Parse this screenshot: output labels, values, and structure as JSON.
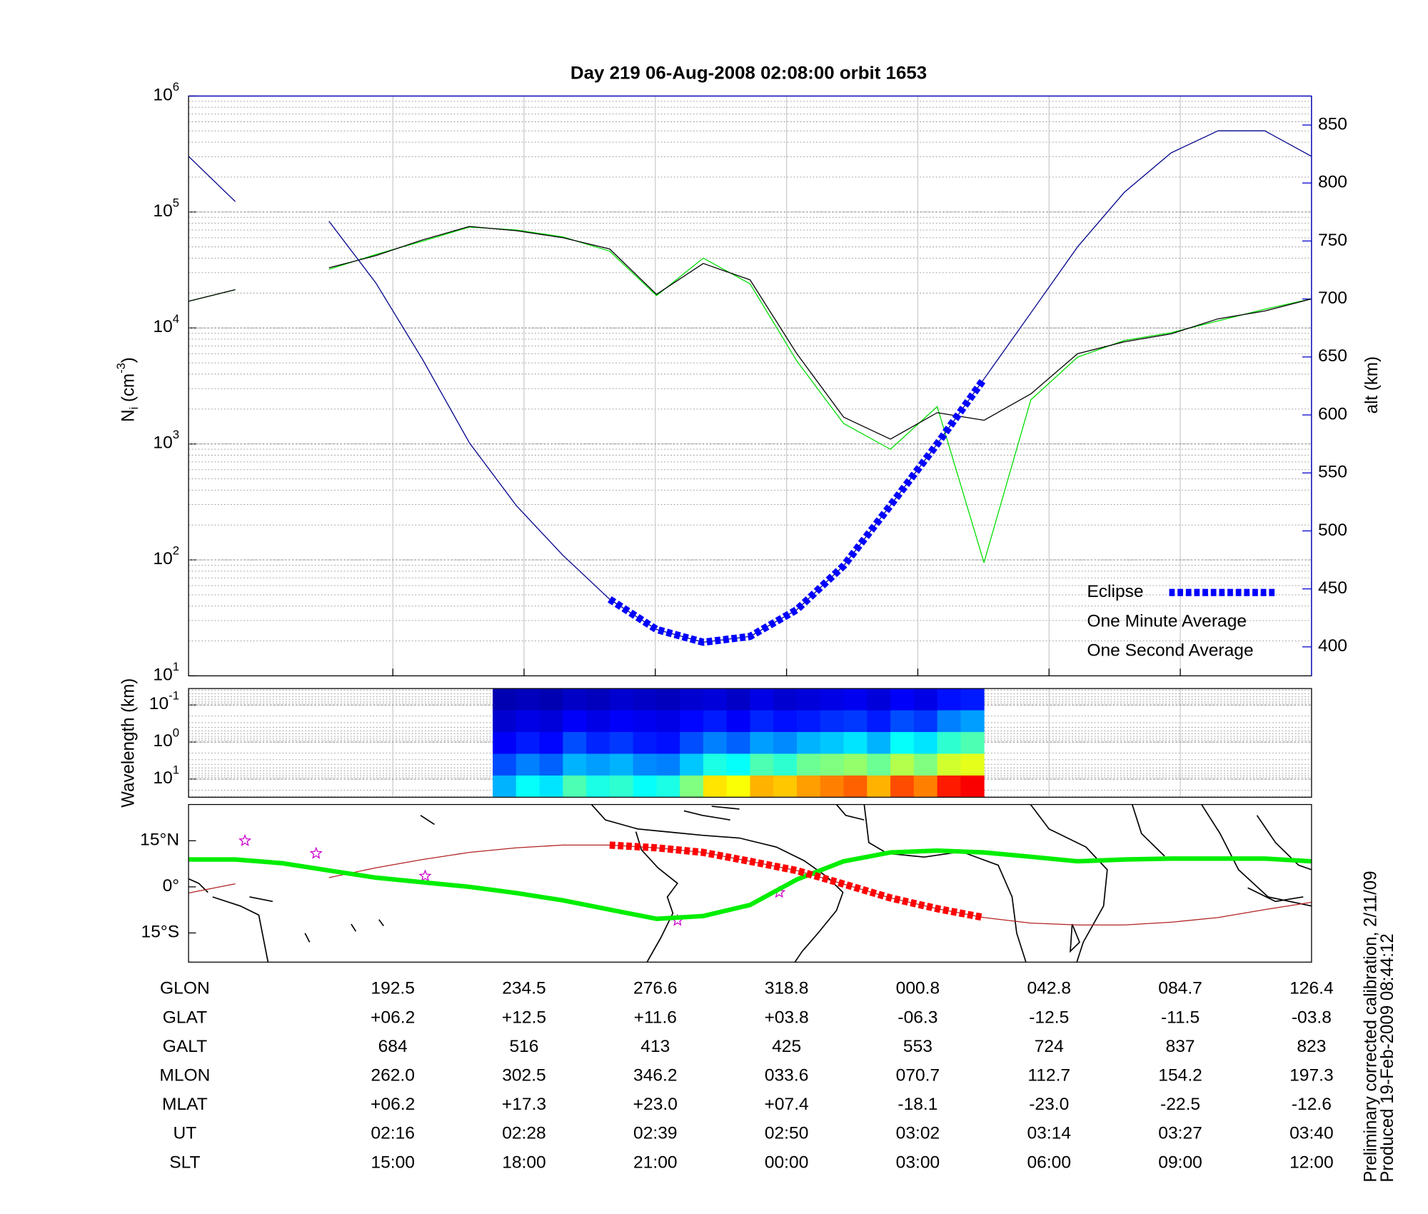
{
  "title": "Day 219  06-Aug-2008 02:08:00   orbit 1653",
  "chart_data": [
    {
      "type": "line",
      "ylabel": [
        "N",
        "i",
        " (cm",
        "-3",
        ")"
      ],
      "log_scale": true,
      "ylim": [
        10,
        1000000
      ],
      "yticks": [
        {
          "value": 10,
          "label": "10",
          "exponent": "1"
        },
        {
          "value": 100,
          "label": "10",
          "exponent": "2"
        },
        {
          "value": 1000,
          "label": "10",
          "exponent": "3"
        },
        {
          "value": 10000,
          "label": "10",
          "exponent": "4"
        },
        {
          "value": 100000,
          "label": "10",
          "exponent": "5"
        },
        {
          "value": 1000000,
          "label": "10",
          "exponent": "6"
        }
      ],
      "y2label": "alt (km)",
      "y2lim": [
        375,
        875
      ],
      "y2ticks": [
        400,
        450,
        500,
        550,
        600,
        650,
        700,
        750,
        800,
        850
      ],
      "y2color": "#0000cc",
      "grid": true,
      "legend": "lower right",
      "series": [
        {
          "color": "#00008b",
          "axis": "y2",
          "values": [
            823,
            784,
            null,
            767,
            714,
            648,
            576,
            522,
            479,
            441,
            415,
            404,
            409,
            432,
            470,
            522,
            575,
            631,
            688,
            745,
            792,
            826,
            845,
            845,
            823
          ]
        },
        {
          "name": "Eclipse",
          "color": "#0000ff",
          "axis": "y2",
          "style": "dashed",
          "values": [
            null,
            null,
            null,
            null,
            null,
            null,
            null,
            null,
            null,
            441,
            415,
            404,
            409,
            432,
            470,
            522,
            575,
            631,
            null,
            null,
            null,
            null,
            null,
            null,
            null
          ]
        },
        {
          "name": "One Minute Average",
          "color": "#000000",
          "values": [
            17000,
            21400,
            null,
            33000,
            42000,
            57500,
            75000,
            69000,
            60000,
            48000,
            19500,
            36000,
            26000,
            6000,
            1700,
            1100,
            1860,
            1600,
            2700,
            6000,
            7600,
            8900,
            12000,
            14000,
            17800
          ]
        },
        {
          "name": "One Second Average",
          "color": "#00dd00",
          "values": [
            17000,
            21400,
            null,
            32000,
            43000,
            56000,
            74000,
            70000,
            61000,
            46000,
            19000,
            40000,
            24000,
            5200,
            1500,
            900,
            2100,
            95,
            2400,
            5600,
            7800,
            9100,
            11500,
            14500,
            17800
          ]
        }
      ]
    },
    {
      "type": "heatmap",
      "ylabel": "Wavelength (km)",
      "log_scale": true,
      "y_inverted": true,
      "ylim": [
        0.036,
        31
      ],
      "yticks": [
        {
          "value": 0.1,
          "label": "10",
          "exponent": "-1"
        },
        {
          "value": 1,
          "label": "10",
          "exponent": "0"
        },
        {
          "value": 10,
          "label": "10",
          "exponent": "1"
        }
      ],
      "grid": true,
      "colormap": "jet",
      "values": [
        [
          null,
          null,
          null,
          null,
          null,
          null,
          null,
          null,
          null,
          null,
          null,
          null,
          null,
          0.05,
          0.06,
          0.05,
          0.07,
          0.06,
          0.08,
          0.07,
          0.06,
          0.08,
          0.09,
          0.07,
          0.1,
          0.08,
          0.09,
          0.1,
          0.11,
          0.09,
          0.12,
          0.1,
          0.14,
          0.15,
          null,
          null,
          null,
          null,
          null,
          null,
          null,
          null,
          null,
          null,
          null,
          null,
          null,
          null
        ],
        [
          null,
          null,
          null,
          null,
          null,
          null,
          null,
          null,
          null,
          null,
          null,
          null,
          null,
          0.08,
          0.1,
          0.09,
          0.12,
          0.1,
          0.12,
          0.11,
          0.1,
          0.13,
          0.15,
          0.12,
          0.16,
          0.14,
          0.15,
          0.17,
          0.18,
          0.15,
          0.2,
          0.18,
          0.25,
          0.28,
          null,
          null,
          null,
          null,
          null,
          null,
          null,
          null,
          null,
          null,
          null,
          null,
          null,
          null
        ],
        [
          null,
          null,
          null,
          null,
          null,
          null,
          null,
          null,
          null,
          null,
          null,
          null,
          null,
          0.12,
          0.15,
          0.13,
          0.2,
          0.16,
          0.18,
          0.15,
          0.14,
          0.2,
          0.25,
          0.22,
          0.28,
          0.26,
          0.3,
          0.32,
          0.35,
          0.3,
          0.38,
          0.35,
          0.42,
          0.45,
          null,
          null,
          null,
          null,
          null,
          null,
          null,
          null,
          null,
          null,
          null,
          null,
          null,
          null
        ],
        [
          null,
          null,
          null,
          null,
          null,
          null,
          null,
          null,
          null,
          null,
          null,
          null,
          null,
          0.2,
          0.25,
          0.22,
          0.3,
          0.28,
          0.3,
          0.26,
          0.25,
          0.32,
          0.4,
          0.38,
          0.45,
          0.42,
          0.48,
          0.5,
          0.52,
          0.48,
          0.55,
          0.5,
          0.58,
          0.6,
          null,
          null,
          null,
          null,
          null,
          null,
          null,
          null,
          null,
          null,
          null,
          null,
          null,
          null
        ],
        [
          null,
          null,
          null,
          null,
          null,
          null,
          null,
          null,
          null,
          null,
          null,
          null,
          null,
          0.3,
          0.38,
          0.35,
          0.45,
          0.4,
          0.42,
          0.38,
          0.4,
          0.5,
          0.65,
          0.62,
          0.7,
          0.68,
          0.72,
          0.75,
          0.78,
          0.7,
          0.8,
          0.75,
          0.85,
          0.88,
          null,
          null,
          null,
          null,
          null,
          null,
          null,
          null,
          null,
          null,
          null,
          null,
          null,
          null
        ]
      ]
    },
    {
      "type": "map",
      "ylim": [
        -24.5,
        26.8
      ],
      "yticks": [
        {
          "value": 15,
          "label": "15°N"
        },
        {
          "value": 0,
          "label": "0°"
        },
        {
          "value": -15,
          "label": "15°S"
        }
      ],
      "series": [
        {
          "color": "#b22222",
          "values": [
            -2,
            1,
            null,
            3,
            6.2,
            8.9,
            11.2,
            12.7,
            13.6,
            13.6,
            12.7,
            11.2,
            8.3,
            5.3,
            0.9,
            -3.6,
            -7.1,
            -10,
            -11.8,
            -12.4,
            -12.4,
            -11.5,
            -10,
            -7.4,
            -5
          ]
        },
        {
          "color": "#00ee00",
          "width": "thick",
          "values": [
            8.9,
            8.9,
            7.7,
            5.3,
            3,
            1.5,
            0,
            -2,
            -4.4,
            -7.4,
            -10.4,
            -9.5,
            -5.9,
            2.4,
            8.3,
            11.2,
            11.8,
            11.2,
            9.8,
            8.3,
            8.9,
            9.2,
            9.2,
            9.2,
            8.3
          ]
        },
        {
          "color": "#ff0000",
          "style": "dashed",
          "values": [
            null,
            null,
            null,
            null,
            null,
            null,
            null,
            null,
            null,
            13.6,
            12.7,
            11.2,
            8.3,
            5.3,
            0.9,
            -3.6,
            -7.1,
            -10,
            null,
            null,
            null,
            null,
            null,
            null,
            null
          ]
        }
      ]
    }
  ],
  "table": {
    "row_labels": [
      "GLON",
      "GLAT",
      "GALT",
      "MLON",
      "MLAT",
      "UT",
      "SLT"
    ],
    "rows": [
      [
        "192.5",
        "234.5",
        "276.6",
        "318.8",
        "000.8",
        "042.8",
        "084.7",
        "126.4"
      ],
      [
        "+06.2",
        "+12.5",
        "+11.6",
        "+03.8",
        "-06.3",
        "-12.5",
        "-11.5",
        "-03.8"
      ],
      [
        "684",
        "516",
        "413",
        "425",
        "553",
        "724",
        "837",
        "823"
      ],
      [
        "262.0",
        "302.5",
        "346.2",
        "033.6",
        "070.7",
        "112.7",
        "154.2",
        "197.3"
      ],
      [
        "+06.2",
        "+17.3",
        "+23.0",
        "+07.4",
        "-18.1",
        "-23.0",
        "-22.5",
        "-12.6"
      ],
      [
        "02:16",
        "02:28",
        "02:39",
        "02:50",
        "03:02",
        "03:14",
        "03:27",
        "03:40"
      ],
      [
        "15:00",
        "18:00",
        "21:00",
        "00:00",
        "03:00",
        "06:00",
        "09:00",
        "12:00"
      ]
    ]
  },
  "footnote": [
    "Preliminary corrected calibration, 2/11/09",
    "Produced 19-Feb-2009 08:44:12"
  ]
}
